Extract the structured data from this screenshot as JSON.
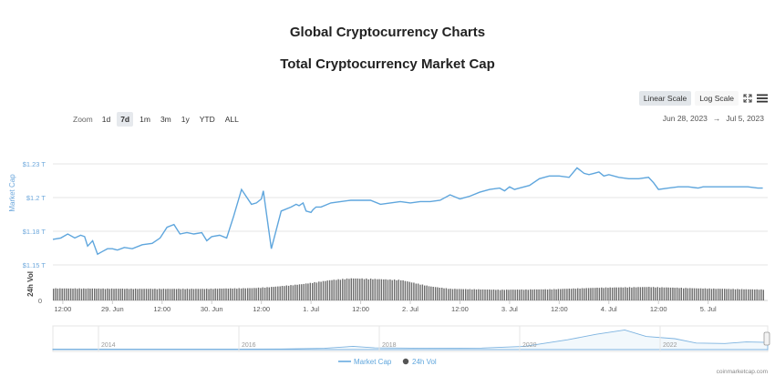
{
  "page_title": "Global Cryptocurrency Charts",
  "toolbar": {
    "linear_label": "Linear Scale",
    "log_label": "Log Scale",
    "fullscreen_icon": "fullscreen-icon",
    "menu_icon": "menu-icon"
  },
  "zoom": {
    "label": "Zoom",
    "options": [
      "1d",
      "7d",
      "1m",
      "3m",
      "1y",
      "YTD",
      "ALL"
    ],
    "selected": "7d"
  },
  "date_range": {
    "from": "Jun 28, 2023",
    "arrow": "→",
    "to": "Jul 5, 2023"
  },
  "credit": "coinmarketcap.com",
  "colors": {
    "market_cap": "#5fa6dd",
    "volume": "#6b6b6b",
    "grid": "#e6e6e6",
    "accent_axis": "#6ea8dc"
  },
  "chart_data": {
    "type": "line",
    "title": "Total Cryptocurrency Market Cap",
    "ylabel": "Market Cap",
    "ylabel2": "24h Vol",
    "y_ticks": [
      "$1.15 T",
      "$1.18 T",
      "$1.2 T",
      "$1.23 T"
    ],
    "y_tick_values": [
      1.15,
      1.175,
      1.2,
      1.225
    ],
    "ylim": [
      1.15,
      1.225
    ],
    "vol_ticks": [
      "0"
    ],
    "x_ticks": [
      "12:00",
      "29. Jun",
      "12:00",
      "30. Jun",
      "12:00",
      "1. Jul",
      "12:00",
      "2. Jul",
      "12:00",
      "3. Jul",
      "12:00",
      "4. Jul",
      "12:00",
      "5. Jul"
    ],
    "xlim": [
      0,
      7.2
    ],
    "navigator_ticks": [
      "2014",
      "2016",
      "2018",
      "2020",
      "2022"
    ],
    "legend": [
      "Market Cap",
      "24h Vol"
    ],
    "series": [
      {
        "name": "Market Cap",
        "x": [
          0.0,
          0.08,
          0.15,
          0.22,
          0.28,
          0.32,
          0.35,
          0.4,
          0.45,
          0.5,
          0.55,
          0.6,
          0.65,
          0.72,
          0.8,
          0.9,
          1.0,
          1.08,
          1.15,
          1.22,
          1.28,
          1.35,
          1.42,
          1.5,
          1.55,
          1.6,
          1.68,
          1.75,
          1.82,
          1.9,
          2.0,
          2.05,
          2.1,
          2.12,
          2.2,
          2.3,
          2.4,
          2.45,
          2.48,
          2.52,
          2.55,
          2.6,
          2.62,
          2.65,
          2.7,
          2.8,
          2.9,
          3.0,
          3.1,
          3.2,
          3.3,
          3.4,
          3.5,
          3.6,
          3.7,
          3.8,
          3.9,
          4.0,
          4.1,
          4.2,
          4.3,
          4.4,
          4.5,
          4.55,
          4.6,
          4.65,
          4.7,
          4.8,
          4.9,
          5.0,
          5.1,
          5.2,
          5.28,
          5.35,
          5.4,
          5.45,
          5.5,
          5.55,
          5.6,
          5.7,
          5.8,
          5.9,
          6.0,
          6.05,
          6.1,
          6.2,
          6.3,
          6.4,
          6.5,
          6.55,
          6.6,
          6.7,
          6.8,
          6.9,
          7.0,
          7.1,
          7.15
        ],
        "values": [
          1.169,
          1.17,
          1.173,
          1.17,
          1.172,
          1.171,
          1.164,
          1.168,
          1.158,
          1.16,
          1.162,
          1.162,
          1.161,
          1.163,
          1.162,
          1.165,
          1.166,
          1.17,
          1.178,
          1.18,
          1.173,
          1.174,
          1.173,
          1.174,
          1.168,
          1.171,
          1.172,
          1.17,
          1.186,
          1.206,
          1.195,
          1.196,
          1.199,
          1.205,
          1.162,
          1.19,
          1.193,
          1.195,
          1.194,
          1.196,
          1.19,
          1.189,
          1.191,
          1.193,
          1.193,
          1.196,
          1.197,
          1.198,
          1.198,
          1.198,
          1.195,
          1.196,
          1.197,
          1.196,
          1.197,
          1.197,
          1.198,
          1.202,
          1.199,
          1.201,
          1.204,
          1.206,
          1.207,
          1.205,
          1.208,
          1.206,
          1.207,
          1.209,
          1.214,
          1.216,
          1.216,
          1.215,
          1.222,
          1.218,
          1.217,
          1.218,
          1.219,
          1.216,
          1.217,
          1.215,
          1.214,
          1.214,
          1.215,
          1.211,
          1.206,
          1.207,
          1.208,
          1.208,
          1.207,
          1.208,
          1.208,
          1.208,
          1.208,
          1.208,
          1.208,
          1.207,
          1.207
        ]
      },
      {
        "name": "24h Vol",
        "x": [
          0.0,
          0.5,
          1.0,
          1.5,
          2.0,
          2.2,
          2.5,
          2.8,
          3.0,
          3.2,
          3.5,
          3.8,
          4.0,
          4.5,
          5.0,
          5.5,
          6.0,
          6.5,
          7.0,
          7.15
        ],
        "values": [
          0.52,
          0.51,
          0.5,
          0.5,
          0.53,
          0.58,
          0.7,
          0.88,
          0.95,
          0.93,
          0.88,
          0.6,
          0.5,
          0.46,
          0.48,
          0.55,
          0.58,
          0.52,
          0.48,
          0.47
        ]
      }
    ]
  }
}
